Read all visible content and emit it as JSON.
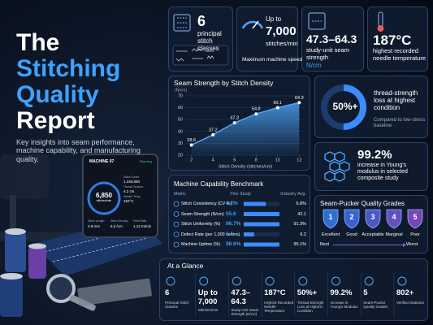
{
  "header": {
    "title_lines": [
      "The",
      "Stitching",
      "Quality",
      "Report"
    ],
    "subtitle": "Key insights into seam performance, machine capability, and manufacturing quality."
  },
  "tablet": {
    "machine": "MACHINE 07",
    "status": "Running",
    "speed": "6,850",
    "speed_unit": "stitches/min",
    "stats": [
      {
        "label": "Stitch Count",
        "value": "1,346,560"
      },
      {
        "label": "Thread Tension",
        "value": "4.2 cN"
      },
      {
        "label": "Needle Temp",
        "value": "162°C"
      }
    ],
    "bottom": [
      {
        "label": "Stitch Length",
        "value": "2.8 mm"
      },
      {
        "label": "Stitch Density",
        "value": "6.5 /cm"
      },
      {
        "label": "Feed Rate",
        "value": "1.12 m/min"
      }
    ]
  },
  "stat_cards": [
    {
      "value": "6",
      "text": "principal stitch classes"
    },
    {
      "prefix": "Up to",
      "value": "7,000",
      "unit": "stitches/min",
      "caption": "Maximum machine speed"
    },
    {
      "value": "47.3–64.3",
      "text": "study-unit seam strength",
      "unit": "N/cm"
    },
    {
      "value": "187°C",
      "text": "highest recorded needle temperature"
    }
  ],
  "chart_data": {
    "type": "line",
    "title": "Seam Strength by Stitch Density",
    "y_label": "(N/cm)",
    "x_label": "Stitch Density (stitches/cm)",
    "x": [
      2,
      4,
      6,
      8,
      10,
      12
    ],
    "values": [
      28.6,
      37.2,
      47.3,
      54.8,
      60.1,
      64.3
    ],
    "color": "#4fa8ff",
    "xlim": [
      1.5,
      12.5
    ],
    "xticks": [
      2,
      4,
      6,
      8,
      10,
      12
    ],
    "ylim": [
      20,
      70
    ],
    "yticks": [
      20,
      30,
      40,
      50,
      60,
      70
    ],
    "grid": true
  },
  "donut": {
    "value": 50,
    "label": "50%+",
    "text": "thread-strength loss at highest condition",
    "note": "Compared to low-stress baseline"
  },
  "modulus": {
    "value": "99.2%",
    "text": "increase in Young's modulus in selected composite study"
  },
  "benchmark": {
    "title": "Machine Capability Benchmark",
    "columns": [
      "Metric",
      "This Study",
      "Industry Avg."
    ],
    "rows": [
      {
        "metric": "Stitch Consistency (CV %)",
        "study": {
          "value": 4.2,
          "label": "4.2%"
        },
        "avg": {
          "value": 6.8,
          "label": "6.8%"
        }
      },
      {
        "metric": "Seam Strength (N/cm)",
        "study": 55.6,
        "avg": 42.1
      },
      {
        "metric": "Stitch Uniformity (%)",
        "study": {
          "value": 96.7,
          "label": "96.7%"
        },
        "avg": {
          "value": 91.3,
          "label": "91.3%"
        }
      },
      {
        "metric": "Defect Rate (per 1,000 seams)",
        "study": 1.8,
        "avg": 6.2
      },
      {
        "metric": "Machine Uptime (%)",
        "study": {
          "value": 98.6,
          "label": "98.6%"
        },
        "avg": {
          "value": 95.1,
          "label": "95.1%"
        }
      }
    ]
  },
  "grades": {
    "title": "Seam-Pucker Quality Grades",
    "items": [
      {
        "grade": "1",
        "label": "Excellent",
        "color": "#2d6fd6"
      },
      {
        "grade": "2",
        "label": "Good",
        "color": "#3a62cf"
      },
      {
        "grade": "3",
        "label": "Acceptable",
        "color": "#4d58c6"
      },
      {
        "grade": "4",
        "label": "Marginal",
        "color": "#6150bd"
      },
      {
        "grade": "5",
        "label": "Poor",
        "color": "#7647b3"
      }
    ],
    "best": "Best",
    "worst": "Worst"
  },
  "glance": {
    "title": "At a Glance",
    "items": [
      {
        "value": "6",
        "label": "Principal Stitch Classes"
      },
      {
        "value": "Up to 7,000",
        "label": "Stitches/min"
      },
      {
        "value": "47.3–64.3",
        "label": "Study-Unit Seam Strength (N/cm)"
      },
      {
        "value": "187°C",
        "label": "Highest Recorded Needle Temperature"
      },
      {
        "value": "50%+",
        "label": "Thread-Strength Loss at Highest Condition"
      },
      {
        "value": "99.2%",
        "label": "Increase in Young's Modulus"
      },
      {
        "value": "5",
        "label": "Seam-Pucker Quality Grades"
      },
      {
        "value": "802+",
        "label": "Verified Statistics"
      }
    ]
  }
}
